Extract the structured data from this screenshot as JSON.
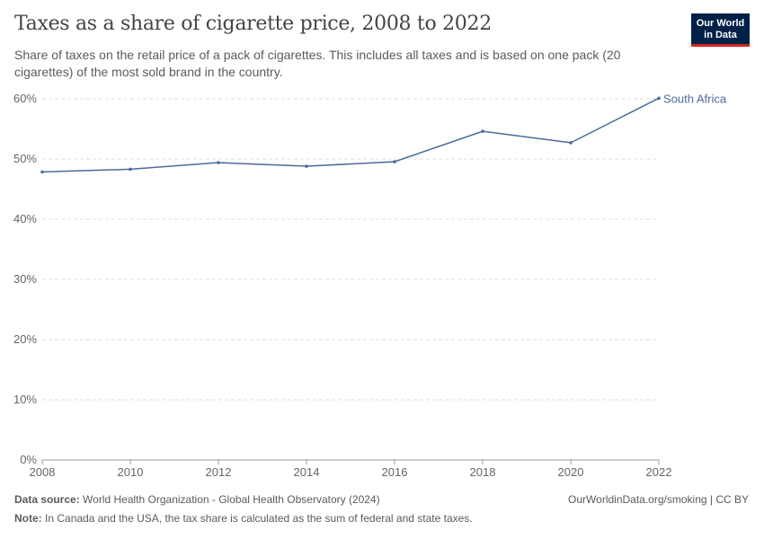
{
  "title": "Taxes as a share of cigarette price, 2008 to 2022",
  "subtitle": "Share of taxes on the retail price of a pack of cigarettes. This includes all taxes and is based on one pack (20 cigarettes) of the most sold brand in the country.",
  "logo": {
    "line1": "Our World",
    "line2": "in Data"
  },
  "footer": {
    "source_label": "Data source:",
    "source": "World Health Organization - Global Health Observatory (2024)",
    "credit": "OurWorldinData.org/smoking | CC BY",
    "note_label": "Note:",
    "note": "In Canada and the USA, the tax share is calculated as the sum of federal and state taxes."
  },
  "chart_data": {
    "type": "line",
    "x": [
      2008,
      2010,
      2012,
      2014,
      2016,
      2018,
      2020,
      2022
    ],
    "series": [
      {
        "name": "South Africa",
        "values": [
          47.85,
          48.3,
          49.4,
          48.8,
          49.55,
          54.6,
          52.7,
          60.1
        ],
        "color": "#4c6a9c"
      }
    ],
    "xlim": [
      2008,
      2022
    ],
    "ylim": [
      0,
      60
    ],
    "xticks": [
      "2008",
      "2010",
      "2012",
      "2014",
      "2016",
      "2018",
      "2020",
      "2022"
    ],
    "yticks": [
      "0%",
      "10%",
      "20%",
      "30%",
      "40%",
      "50%",
      "60%"
    ],
    "grid": "horizontal dashed",
    "legend": "line-end label"
  }
}
